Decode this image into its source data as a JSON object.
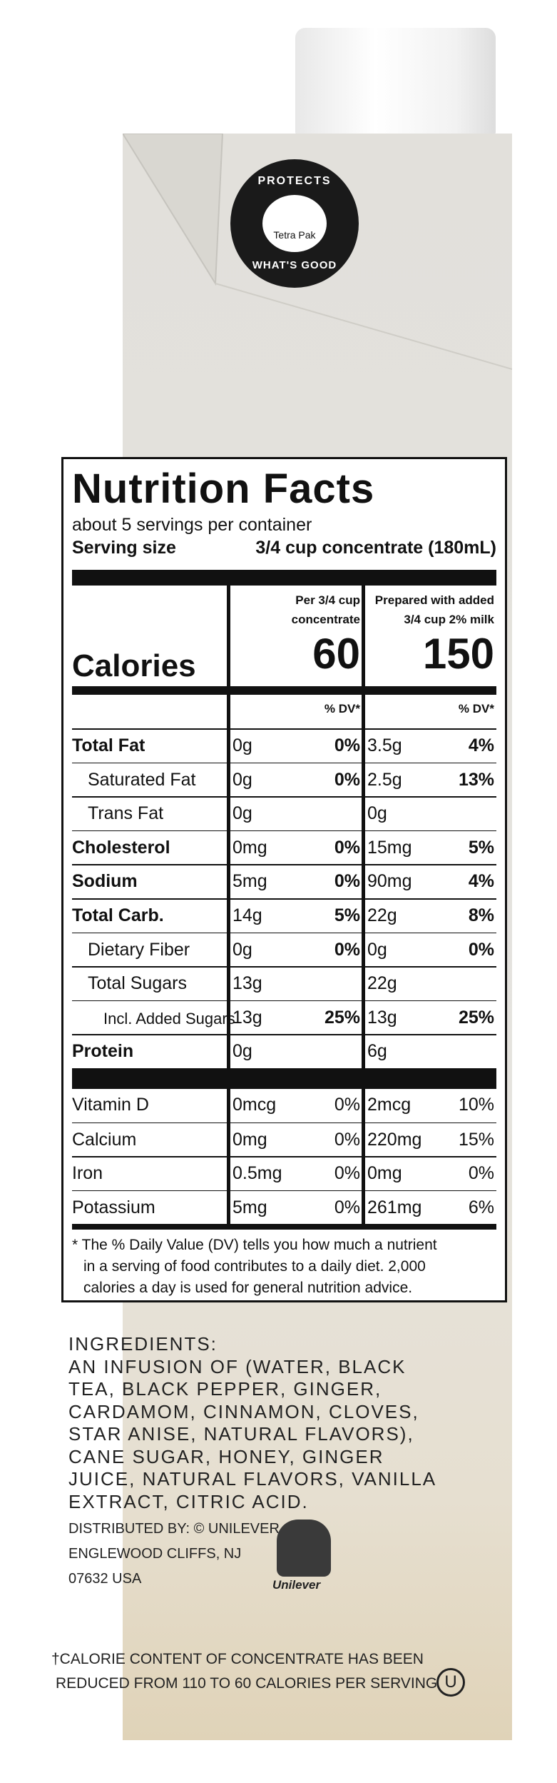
{
  "logo": {
    "top": "PROTECTS",
    "middle": "Tetra Pak",
    "bottom": "WHAT'S GOOD"
  },
  "nutrition": {
    "title": "Nutrition Facts",
    "servings": "about 5 servings per container",
    "serving_size_label": "Serving size",
    "serving_size": "3/4 cup concentrate (180mL)",
    "columns": [
      {
        "header": [
          "Per 3/4 cup",
          "concentrate"
        ],
        "calories": "60",
        "dv_header": "% DV*"
      },
      {
        "header": [
          "Prepared with added",
          "3/4 cup 2% milk"
        ],
        "calories": "150",
        "dv_header": "% DV*"
      }
    ],
    "calories_label": "Calories",
    "nutrients": [
      {
        "name": "Total Fat",
        "bold": true,
        "c1": [
          "0g",
          "0%"
        ],
        "c2": [
          "3.5g",
          "4%"
        ]
      },
      {
        "name": "Saturated Fat",
        "indent": 1,
        "c1": [
          "0g",
          "0%"
        ],
        "c2": [
          "2.5g",
          "13%"
        ]
      },
      {
        "name": "Trans Fat",
        "indent": 1,
        "c1": [
          "0g"
        ],
        "c2": [
          "0g"
        ]
      },
      {
        "name": "Cholesterol",
        "bold": true,
        "c1": [
          "0mg",
          "0%"
        ],
        "c2": [
          "15mg",
          "5%"
        ]
      },
      {
        "name": "Sodium",
        "bold": true,
        "c1": [
          "5mg",
          "0%"
        ],
        "c2": [
          "90mg",
          "4%"
        ]
      },
      {
        "name": "Total Carb.",
        "bold": true,
        "c1": [
          "14g",
          "5%"
        ],
        "c2": [
          "22g",
          "8%"
        ]
      },
      {
        "name": "Dietary Fiber",
        "indent": 1,
        "c1": [
          "0g",
          "0%"
        ],
        "c2": [
          "0g",
          "0%"
        ]
      },
      {
        "name": "Total Sugars",
        "indent": 1,
        "c1": [
          "13g"
        ],
        "c2": [
          "22g"
        ]
      },
      {
        "name": "Incl. Added Sugars",
        "indent": 2,
        "c1": [
          "13g",
          "25%"
        ],
        "c2": [
          "13g",
          "25%"
        ]
      },
      {
        "name": "Protein",
        "bold": true,
        "c1": [
          "0g"
        ],
        "c2": [
          "6g"
        ]
      }
    ],
    "vitamins": [
      {
        "name": "Vitamin D",
        "c1": [
          "0mcg",
          "0%"
        ],
        "c2": [
          "2mcg",
          "10%"
        ]
      },
      {
        "name": "Calcium",
        "c1": [
          "0mg",
          "0%"
        ],
        "c2": [
          "220mg",
          "15%"
        ]
      },
      {
        "name": "Iron",
        "c1": [
          "0.5mg",
          "0%"
        ],
        "c2": [
          "0mg",
          "0%"
        ]
      },
      {
        "name": "Potassium",
        "c1": [
          "5mg",
          "0%"
        ],
        "c2": [
          "261mg",
          "6%"
        ]
      }
    ],
    "footnote": [
      "* The % Daily Value (DV) tells you how much a nutrient",
      "in a serving of food contributes to a daily diet. 2,000",
      "calories a day is used for general nutrition advice."
    ]
  },
  "ingredients": [
    "INGREDIENTS:",
    "AN INFUSION OF (WATER, BLACK",
    "TEA, BLACK PEPPER, GINGER,",
    "CARDAMOM, CINNAMON, CLOVES,",
    "STAR ANISE, NATURAL FLAVORS),",
    "CANE SUGAR, HONEY, GINGER",
    "JUICE, NATURAL FLAVORS, VANILLA",
    "EXTRACT, CITRIC ACID."
  ],
  "distributor": [
    "DISTRIBUTED BY: © UNILEVER",
    "ENGLEWOOD CLIFFS, NJ",
    "07632 USA"
  ],
  "brand": "Unilever",
  "calorie_note": [
    "†CALORIE CONTENT OF CONCENTRATE HAS BEEN",
    "REDUCED FROM 110 TO 60 CALORIES PER SERVING"
  ],
  "kosher": "U"
}
